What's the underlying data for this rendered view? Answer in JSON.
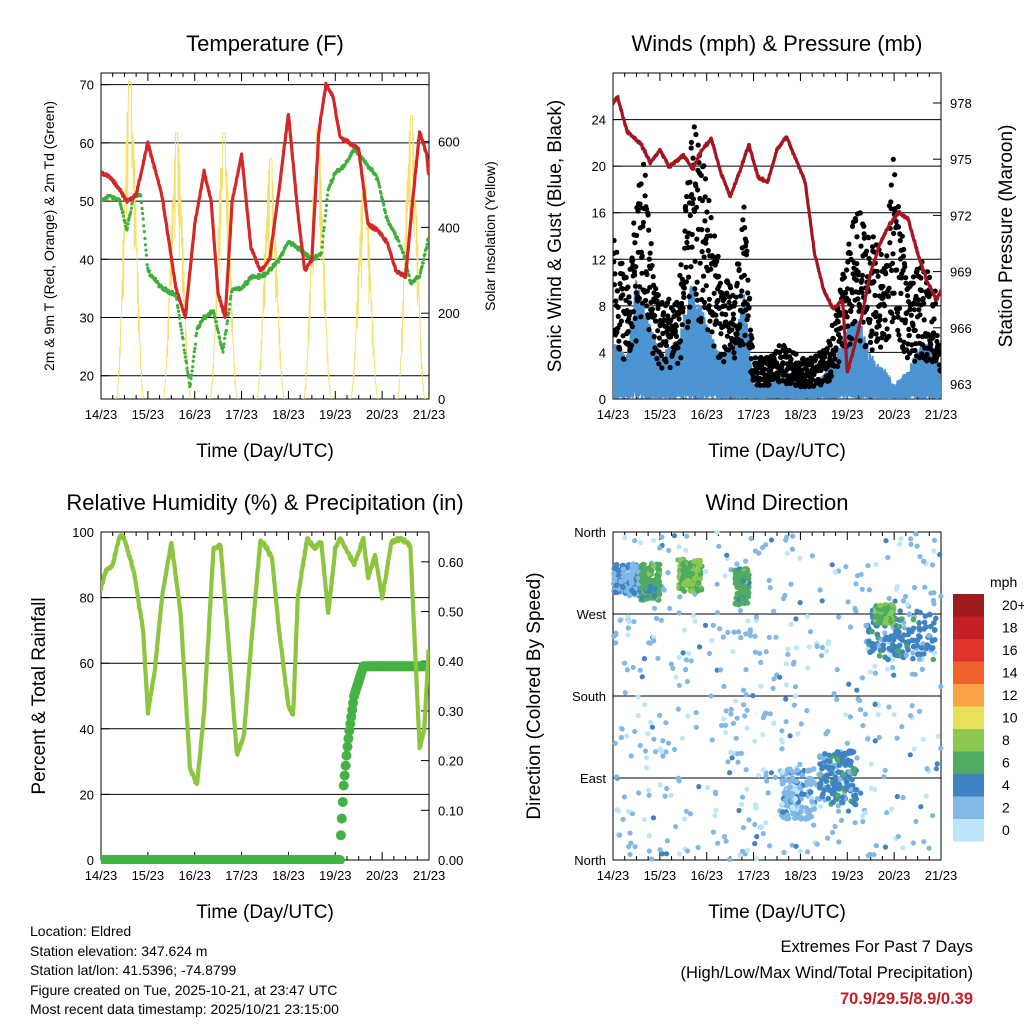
{
  "x_ticks": [
    "14/23",
    "15/23",
    "16/23",
    "17/23",
    "18/23",
    "19/23",
    "20/23",
    "21/23"
  ],
  "colors": {
    "red": "#d62728",
    "green": "#3fae3b",
    "yellow": "#f5e16a",
    "maroon": "#a31621",
    "blue": "#4d94d2",
    "black": "#000000",
    "rh": "#8cc63f",
    "precip": "#44b244"
  },
  "speed_colorbar": {
    "title": "mph",
    "labels": [
      "20+",
      "18",
      "16",
      "14",
      "12",
      "10",
      "8",
      "6",
      "4",
      "2",
      "0"
    ],
    "colors": [
      "#9e1b1b",
      "#c62027",
      "#e0342b",
      "#f0622c",
      "#f6a245",
      "#e8df5a",
      "#8cc84f",
      "#4eab62",
      "#3f83c2",
      "#82b8e6",
      "#bde6f8"
    ]
  },
  "info": {
    "location": "Location: Eldred",
    "elevation": "Station elevation: 347.624 m",
    "latlon": "Station lat/lon: 41.5396; -74.8799",
    "created": "Figure created on Tue, 2025-10-21, at 23:47 UTC",
    "recent": "Most recent data timestamp: 2025/10/21 23:15:00"
  },
  "extremes": {
    "title": "Extremes For Past 7 Days",
    "subtitle": "(High/Low/Max Wind/Total Precipitation)",
    "values": "70.9/29.5/8.9/0.39"
  },
  "chart_data": [
    {
      "type": "line",
      "title": "Temperature (F)",
      "xlabel": "Time (Day/UTC)",
      "ylabel": "2m & 9m T (Red, Orange) & 2m Td (Green)",
      "y2label": "Solar Insolation (Yellow)",
      "xlim": [
        0,
        7
      ],
      "ylim": [
        16,
        72
      ],
      "y_ticks": [
        20,
        30,
        40,
        50,
        60,
        70
      ],
      "y2lim": [
        0,
        760
      ],
      "y2_ticks": [
        0,
        200,
        400,
        600
      ],
      "series": [
        {
          "name": "2m T",
          "color": "red",
          "x": [
            0,
            0.2,
            0.4,
            0.55,
            0.75,
            1.0,
            1.3,
            1.6,
            1.8,
            2.0,
            2.2,
            2.35,
            2.5,
            2.65,
            2.8,
            3.0,
            3.2,
            3.4,
            3.6,
            3.8,
            4.0,
            4.2,
            4.35,
            4.5,
            4.65,
            4.8,
            4.95,
            5.1,
            5.3,
            5.5,
            5.7,
            5.9,
            6.1,
            6.3,
            6.5,
            6.65,
            6.8,
            6.95,
            7.0
          ],
          "values": [
            55,
            54,
            52,
            50,
            51,
            60,
            51,
            35,
            30,
            46,
            55,
            50,
            34,
            30,
            50,
            58,
            42,
            38,
            40,
            52,
            65,
            48,
            38,
            40,
            62,
            70,
            68,
            61,
            60,
            59,
            46,
            45,
            43,
            38,
            37,
            50,
            62,
            58,
            54
          ]
        },
        {
          "name": "2m Td",
          "color": "green",
          "x": [
            0,
            0.2,
            0.4,
            0.55,
            0.7,
            0.85,
            1.0,
            1.3,
            1.6,
            1.9,
            2.05,
            2.2,
            2.4,
            2.6,
            2.8,
            3.0,
            3.2,
            3.4,
            3.6,
            3.8,
            4.0,
            4.2,
            4.5,
            4.7,
            4.85,
            5.0,
            5.2,
            5.4,
            5.6,
            5.9,
            6.1,
            6.3,
            6.5,
            6.6,
            6.8,
            7.0
          ],
          "values": [
            50,
            51,
            50,
            45,
            51,
            51,
            38,
            35,
            34,
            18,
            28,
            30,
            31,
            24,
            35,
            35,
            37,
            37,
            38,
            40,
            43,
            42,
            40,
            41,
            52,
            55,
            56,
            59,
            57,
            54,
            47,
            44,
            40,
            36,
            37,
            44
          ]
        },
        {
          "name": "Solar Insolation",
          "color": "yellow",
          "axis": "y2",
          "x": [
            0.62,
            1.62,
            2.62,
            3.62,
            4.62,
            5.62,
            6.62
          ],
          "values": [
            740,
            620,
            620,
            560,
            630,
            520,
            660
          ]
        }
      ]
    },
    {
      "type": "line",
      "title": "Winds (mph) & Pressure (mb)",
      "xlabel": "Time (Day/UTC)",
      "ylabel": "Sonic Wind & Gust (Blue, Black)",
      "y2label": "Station Pressure (Maroon)",
      "xlim": [
        0,
        7
      ],
      "ylim": [
        0,
        28
      ],
      "y_ticks": [
        0,
        4,
        8,
        12,
        16,
        20,
        24
      ],
      "y2lim": [
        962.2,
        979.6
      ],
      "y2_ticks": [
        963,
        966,
        969,
        972,
        975,
        978
      ],
      "series": [
        {
          "name": "Sonic Wind",
          "color": "blue",
          "x": [
            0,
            0.3,
            0.5,
            0.8,
            1.0,
            1.4,
            1.7,
            2.0,
            2.3,
            2.6,
            2.8,
            3.0,
            3.3,
            3.6,
            4.0,
            4.3,
            4.6,
            4.9,
            5.2,
            5.5,
            5.8,
            6.0,
            6.3,
            6.6,
            6.9,
            7.0
          ],
          "values": [
            4,
            3,
            8,
            5,
            3,
            4,
            8,
            5,
            3,
            4,
            7,
            1,
            1,
            2,
            1,
            1,
            2,
            4,
            6,
            3,
            2,
            1,
            2,
            4,
            3,
            1
          ]
        },
        {
          "name": "Gust",
          "color": "black",
          "x": [
            0,
            0.3,
            0.5,
            0.65,
            0.8,
            1.0,
            1.4,
            1.7,
            2.0,
            2.3,
            2.6,
            2.8,
            3.0,
            3.3,
            3.6,
            4.0,
            4.3,
            4.6,
            4.9,
            5.2,
            5.5,
            5.8,
            6.0,
            6.3,
            6.6,
            6.9,
            7.0
          ],
          "values": [
            12,
            9,
            14,
            18,
            12,
            7,
            8,
            20,
            16,
            9,
            8,
            14,
            3,
            3,
            4,
            3,
            3,
            4,
            9,
            14,
            12,
            10,
            18,
            8,
            10,
            8,
            3
          ]
        },
        {
          "name": "Station Pressure",
          "color": "maroon",
          "axis": "y2",
          "x": [
            0,
            0.1,
            0.3,
            0.6,
            0.8,
            1.0,
            1.2,
            1.5,
            1.7,
            1.9,
            2.1,
            2.3,
            2.5,
            2.7,
            2.9,
            3.1,
            3.3,
            3.5,
            3.7,
            3.9,
            4.1,
            4.3,
            4.5,
            4.7,
            4.9,
            5.0,
            5.1,
            5.3,
            5.5,
            5.7,
            5.9,
            6.1,
            6.3,
            6.5,
            6.7,
            6.9,
            7.0
          ],
          "values": [
            978,
            978.3,
            976.5,
            975.8,
            974.8,
            975.5,
            974.6,
            975.2,
            974.5,
            975.5,
            976.1,
            974.3,
            973,
            974.3,
            975.8,
            974,
            973.8,
            975.5,
            976.2,
            975,
            973.8,
            970,
            968,
            967,
            967.5,
            963.6,
            964.5,
            966.5,
            969,
            970.5,
            971.5,
            972.2,
            971.8,
            970,
            968.5,
            967.5,
            968
          ]
        }
      ]
    },
    {
      "type": "line",
      "title": "Relative Humidity (%) & Precipitation (in)",
      "xlabel": "Time (Day/UTC)",
      "ylabel": "Percent & Total Rainfall",
      "xlim": [
        0,
        7
      ],
      "ylim": [
        0,
        100
      ],
      "y_ticks": [
        0,
        20,
        40,
        60,
        80,
        100
      ],
      "y2lim": [
        0,
        0.66
      ],
      "y2_ticks": [
        0.0,
        0.1,
        0.2,
        0.3,
        0.4,
        0.5,
        0.6
      ],
      "y2_tick_labels": [
        "0.00",
        "0.10",
        "0.20",
        "0.30",
        "0.40",
        "0.50",
        "0.60"
      ],
      "series": [
        {
          "name": "Relative Humidity",
          "color": "rh",
          "x": [
            0,
            0.1,
            0.25,
            0.4,
            0.5,
            0.7,
            0.9,
            1.0,
            1.15,
            1.3,
            1.5,
            1.7,
            1.9,
            2.05,
            2.2,
            2.4,
            2.55,
            2.7,
            2.9,
            3.05,
            3.2,
            3.4,
            3.5,
            3.65,
            3.8,
            4.0,
            4.1,
            4.2,
            4.4,
            4.55,
            4.7,
            4.85,
            5.0,
            5.1,
            5.3,
            5.4,
            5.6,
            5.7,
            5.85,
            6.0,
            6.2,
            6.4,
            6.6,
            6.8,
            6.9,
            7.0
          ],
          "values": [
            83,
            88,
            90,
            99,
            98,
            88,
            70,
            45,
            58,
            80,
            97,
            75,
            28,
            23,
            45,
            95,
            96,
            70,
            32,
            38,
            65,
            97,
            96,
            92,
            70,
            47,
            44,
            80,
            98,
            95,
            97,
            75,
            95,
            98,
            93,
            90,
            98,
            86,
            93,
            80,
            97,
            98,
            96,
            34,
            40,
            66
          ]
        },
        {
          "name": "Total Precipitation",
          "color": "precip",
          "axis": "y2",
          "x": [
            0,
            5.1,
            5.12,
            5.18,
            5.25,
            5.3,
            5.4,
            5.5,
            5.6,
            5.7,
            7.0
          ],
          "values": [
            0,
            0,
            0.05,
            0.15,
            0.22,
            0.26,
            0.33,
            0.36,
            0.39,
            0.39,
            0.39
          ]
        }
      ]
    },
    {
      "type": "scatter",
      "title": "Wind Direction",
      "xlabel": "Time (Day/UTC)",
      "ylabel": "Direction (Colored By Speed)",
      "xlim": [
        0,
        7
      ],
      "ylim": [
        0,
        360
      ],
      "y_ticks": [
        0,
        90,
        180,
        270,
        360
      ],
      "y_tick_labels": [
        "North",
        "East",
        "South",
        "West",
        "North"
      ],
      "clusters": [
        {
          "x0": 0.0,
          "x1": 0.6,
          "dir_lo": 290,
          "dir_hi": 325,
          "speed": 3
        },
        {
          "x0": 0.6,
          "x1": 1.0,
          "dir_lo": 285,
          "dir_hi": 325,
          "speed": 6
        },
        {
          "x0": 1.4,
          "x1": 1.9,
          "dir_lo": 295,
          "dir_hi": 330,
          "speed": 7
        },
        {
          "x0": 2.6,
          "x1": 2.9,
          "dir_lo": 280,
          "dir_hi": 320,
          "speed": 6
        },
        {
          "x0": 3.6,
          "x1": 4.3,
          "dir_lo": 45,
          "dir_hi": 100,
          "speed": 2
        },
        {
          "x0": 4.4,
          "x1": 5.2,
          "dir_lo": 60,
          "dir_hi": 120,
          "speed": 4
        },
        {
          "x0": 5.4,
          "x1": 6.9,
          "dir_lo": 220,
          "dir_hi": 275,
          "speed": 4
        },
        {
          "x0": 5.6,
          "x1": 6.0,
          "dir_lo": 260,
          "dir_hi": 280,
          "speed": 7
        }
      ]
    }
  ]
}
